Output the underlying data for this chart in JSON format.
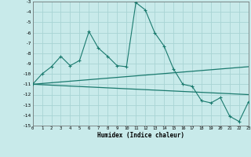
{
  "xlabel": "Humidex (Indice chaleur)",
  "background_color": "#c8eaea",
  "grid_color": "#a8d4d4",
  "line_color": "#1a7a6e",
  "xlim": [
    0,
    23
  ],
  "ylim": [
    -15,
    -3
  ],
  "xticks": [
    0,
    1,
    2,
    3,
    4,
    5,
    6,
    7,
    8,
    9,
    10,
    11,
    12,
    13,
    14,
    15,
    16,
    17,
    18,
    19,
    20,
    21,
    22,
    23
  ],
  "yticks": [
    -3,
    -4,
    -5,
    -6,
    -7,
    -8,
    -9,
    -10,
    -11,
    -12,
    -13,
    -14,
    -15
  ],
  "curve1_x": [
    0,
    1,
    2,
    3,
    4,
    5,
    6,
    7,
    8,
    9,
    10,
    11,
    12,
    13,
    14,
    15,
    16,
    17,
    18,
    19,
    20,
    21,
    22,
    23
  ],
  "curve1_y": [
    -11.0,
    -10.0,
    -9.3,
    -8.3,
    -9.2,
    -8.7,
    -5.9,
    -7.5,
    -8.3,
    -9.2,
    -9.3,
    -3.1,
    -3.8,
    -6.0,
    -7.3,
    -9.5,
    -11.0,
    -11.2,
    -12.6,
    -12.8,
    -12.3,
    -14.1,
    -14.6,
    -12.7
  ],
  "line2_x": [
    0,
    23
  ],
  "line2_y": [
    -11.0,
    -9.3
  ],
  "line3_x": [
    0,
    23
  ],
  "line3_y": [
    -11.0,
    -12.0
  ]
}
